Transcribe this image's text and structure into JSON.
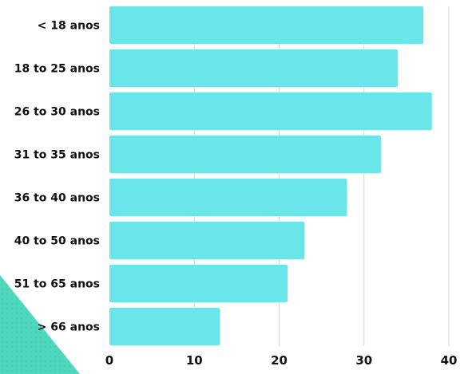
{
  "chart_data": {
    "type": "bar",
    "orientation": "horizontal",
    "categories": [
      "< 18 anos",
      "18 to 25 anos",
      "26 to 30 anos",
      "31 to 35 anos",
      "36 to 40 anos",
      "40 to 50 anos",
      "51 to 65 anos",
      "> 66 anos"
    ],
    "values": [
      37,
      34,
      38,
      32,
      28,
      23,
      21,
      13
    ],
    "xlim": [
      0,
      40
    ],
    "xticks": [
      "0",
      "10",
      "20",
      "30",
      "40"
    ],
    "grid": true,
    "bar_color": "#6ae5ea",
    "decoration_color": "#4fd8be"
  }
}
